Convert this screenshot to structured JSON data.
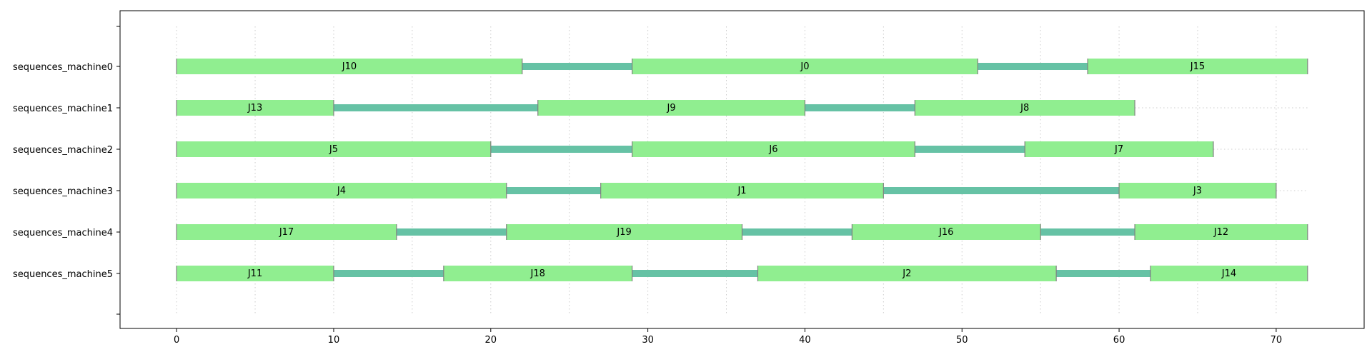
{
  "chart_data": {
    "type": "gantt",
    "title": "",
    "xlabel": "",
    "ylabel": "",
    "xlim": [
      -3.6,
      75.6
    ],
    "xticks": [
      0,
      10,
      20,
      30,
      40,
      50,
      60,
      70
    ],
    "grid": "dotted vertical every 5",
    "colors": {
      "task": "#90ee90",
      "gap": "#66c2a5",
      "grid": "#cccccc",
      "edge": "#808080"
    },
    "rows": [
      {
        "name": "sequences_machine0",
        "tasks": [
          {
            "label": "J10",
            "start": 0,
            "end": 22
          },
          {
            "label": "J0",
            "start": 29,
            "end": 51
          },
          {
            "label": "J15",
            "start": 58,
            "end": 72
          }
        ]
      },
      {
        "name": "sequences_machine1",
        "tasks": [
          {
            "label": "J13",
            "start": 0,
            "end": 10
          },
          {
            "label": "J9",
            "start": 23,
            "end": 40
          },
          {
            "label": "J8",
            "start": 47,
            "end": 61
          }
        ]
      },
      {
        "name": "sequences_machine2",
        "tasks": [
          {
            "label": "J5",
            "start": 0,
            "end": 20
          },
          {
            "label": "J6",
            "start": 29,
            "end": 47
          },
          {
            "label": "J7",
            "start": 54,
            "end": 66
          }
        ]
      },
      {
        "name": "sequences_machine3",
        "tasks": [
          {
            "label": "J4",
            "start": 0,
            "end": 21
          },
          {
            "label": "J1",
            "start": 27,
            "end": 45
          },
          {
            "label": "J3",
            "start": 60,
            "end": 70
          }
        ]
      },
      {
        "name": "sequences_machine4",
        "tasks": [
          {
            "label": "J17",
            "start": 0,
            "end": 14
          },
          {
            "label": "J19",
            "start": 21,
            "end": 36
          },
          {
            "label": "J16",
            "start": 43,
            "end": 55
          },
          {
            "label": "J12",
            "start": 61,
            "end": 72
          }
        ]
      },
      {
        "name": "sequences_machine5",
        "tasks": [
          {
            "label": "J11",
            "start": 0,
            "end": 10
          },
          {
            "label": "J18",
            "start": 17,
            "end": 29
          },
          {
            "label": "J2",
            "start": 37,
            "end": 56
          },
          {
            "label": "J14",
            "start": 62,
            "end": 72
          }
        ]
      }
    ]
  }
}
